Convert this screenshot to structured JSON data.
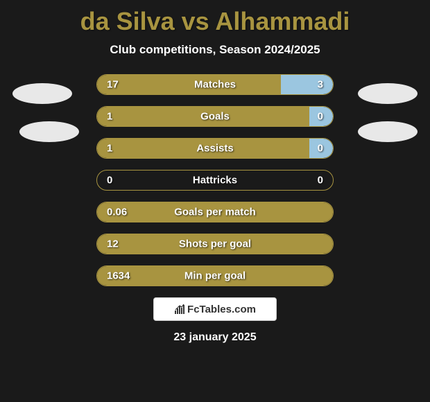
{
  "title": "da Silva vs Alhammadi",
  "subtitle": "Club competitions, Season 2024/2025",
  "colors": {
    "primary": "#a89440",
    "secondary": "#9bc6e0",
    "background": "#1a1a1a",
    "text": "#ffffff",
    "avatar": "#e8e8e8"
  },
  "stats": [
    {
      "label": "Matches",
      "left_value": "17",
      "right_value": "3",
      "left_percent": 78,
      "right_percent": 22
    },
    {
      "label": "Goals",
      "left_value": "1",
      "right_value": "0",
      "left_percent": 90,
      "right_percent": 10
    },
    {
      "label": "Assists",
      "left_value": "1",
      "right_value": "0",
      "left_percent": 90,
      "right_percent": 10
    },
    {
      "label": "Hattricks",
      "left_value": "0",
      "right_value": "0",
      "left_percent": 0,
      "right_percent": 0
    },
    {
      "label": "Goals per match",
      "left_value": "0.06",
      "right_value": "",
      "left_percent": 100,
      "right_percent": 0
    },
    {
      "label": "Shots per goal",
      "left_value": "12",
      "right_value": "",
      "left_percent": 100,
      "right_percent": 0
    },
    {
      "label": "Min per goal",
      "left_value": "1634",
      "right_value": "",
      "left_percent": 100,
      "right_percent": 0
    }
  ],
  "logo_text": "FcTables.com",
  "date": "23 january 2025"
}
